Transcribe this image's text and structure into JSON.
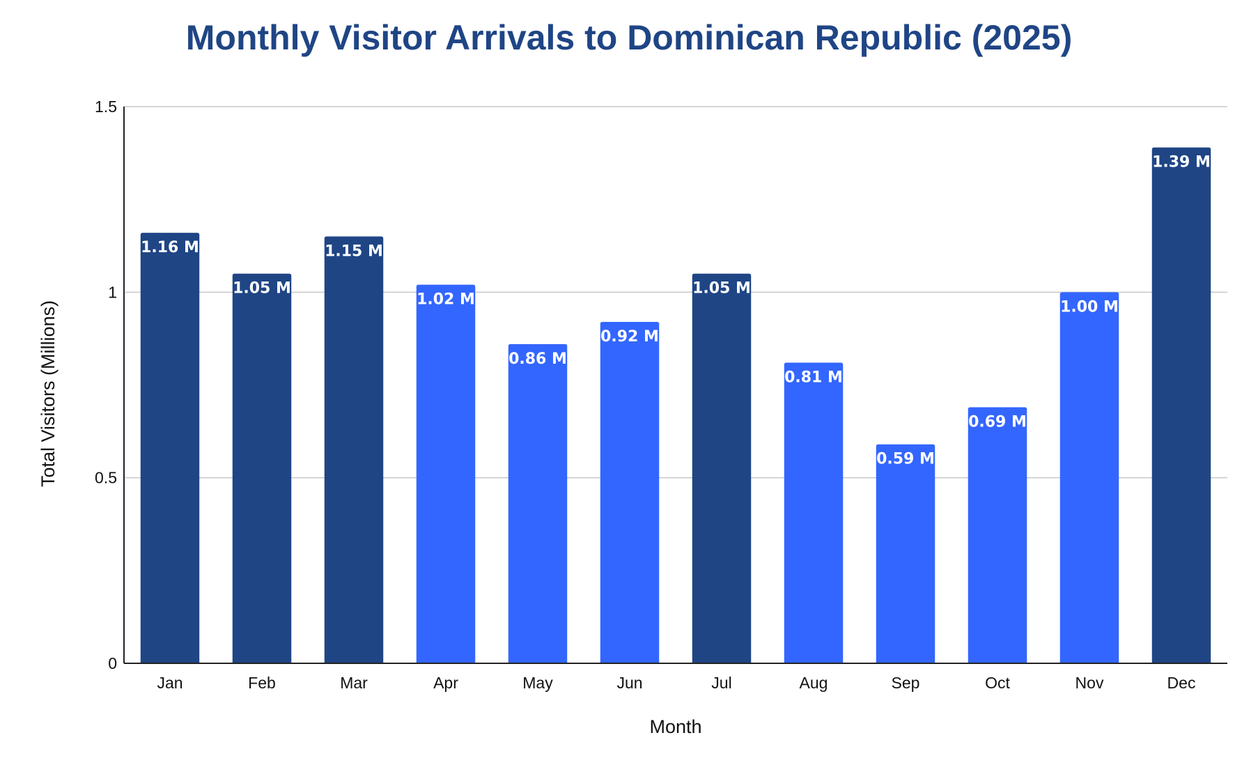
{
  "chart_data": {
    "type": "bar",
    "title": "Monthly Visitor Arrivals to Dominican Republic (2025)",
    "xlabel": "Month",
    "ylabel": "Total Visitors (Millions)",
    "ylim": [
      0,
      1.5
    ],
    "yticks": [
      0,
      0.5,
      1,
      1.5
    ],
    "ytick_labels": [
      "0",
      "0.5",
      "1",
      "1.5"
    ],
    "grid": true,
    "categories": [
      "Jan",
      "Feb",
      "Mar",
      "Apr",
      "May",
      "Jun",
      "Jul",
      "Aug",
      "Sep",
      "Oct",
      "Nov",
      "Dec"
    ],
    "values": [
      1.16,
      1.05,
      1.15,
      1.02,
      0.86,
      0.92,
      1.05,
      0.81,
      0.59,
      0.69,
      1.0,
      1.39
    ],
    "data_labels": [
      "1.16 M",
      "1.05 M",
      "1.15 M",
      "1.02 M",
      "0.86 M",
      "0.92 M",
      "1.05 M",
      "0.81 M",
      "0.59 M",
      "0.69 M",
      "1.00 M",
      "1.39 M"
    ],
    "bar_colors": [
      "#1f4585",
      "#1f4585",
      "#1f4585",
      "#3366ff",
      "#3366ff",
      "#3366ff",
      "#1f4585",
      "#3366ff",
      "#3366ff",
      "#3366ff",
      "#3366ff",
      "#1f4585"
    ]
  }
}
